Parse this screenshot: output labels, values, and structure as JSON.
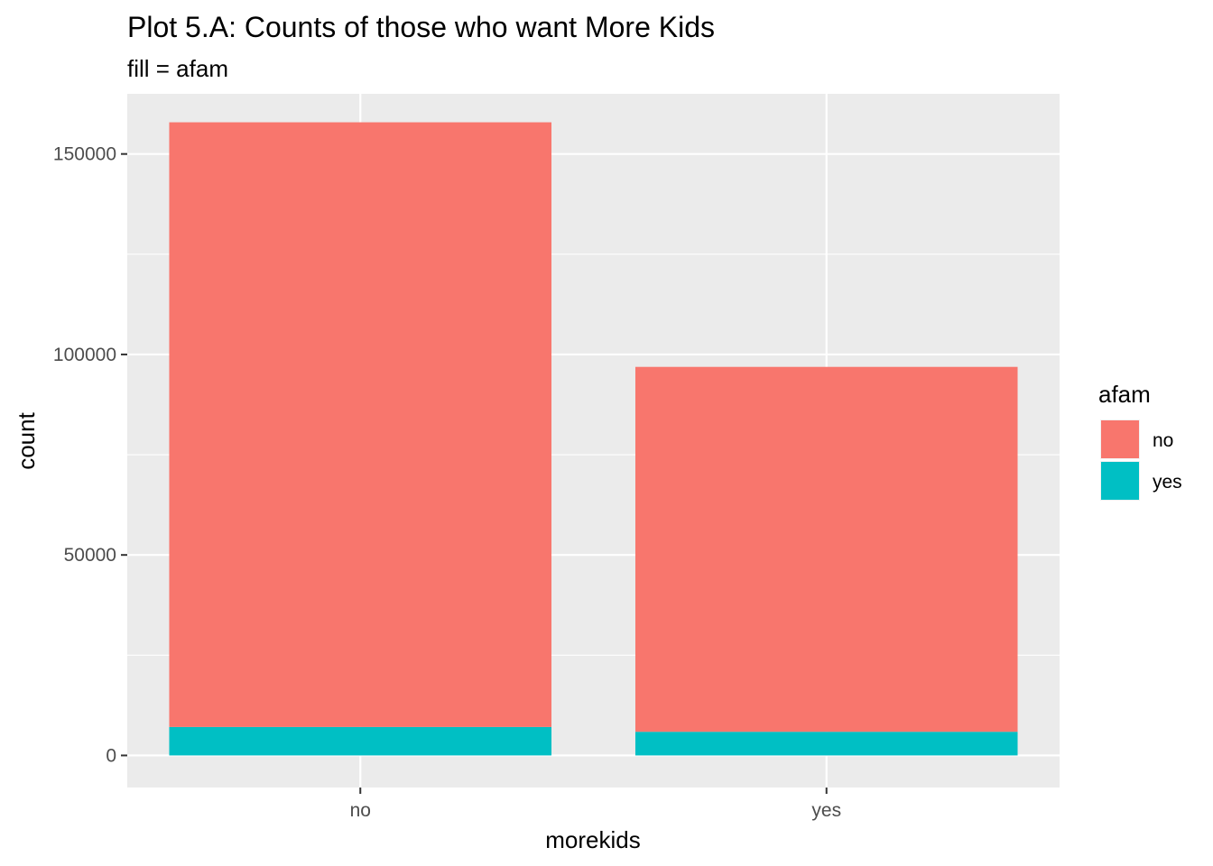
{
  "chart_data": {
    "type": "bar",
    "stacked": true,
    "title": "Plot 5.A: Counts of those who want More Kids",
    "subtitle": "fill = afam",
    "xlabel": "morekids",
    "ylabel": "count",
    "categories": [
      "no",
      "yes"
    ],
    "series": [
      {
        "name": "no",
        "color": "#F8766D",
        "values": [
          150800,
          91000
        ]
      },
      {
        "name": "yes",
        "color": "#00BFC4",
        "values": [
          7100,
          5900
        ]
      }
    ],
    "ylim": [
      -8000,
      165000
    ],
    "yticks": [
      0,
      50000,
      100000,
      150000
    ],
    "ytick_labels": [
      "0",
      "50000",
      "100000",
      "150000"
    ],
    "legend": {
      "title": "afam",
      "position": "right",
      "entries": [
        "no",
        "yes"
      ]
    },
    "grid": true,
    "panel_background": "#EBEBEB",
    "grid_color": "#FFFFFF"
  }
}
